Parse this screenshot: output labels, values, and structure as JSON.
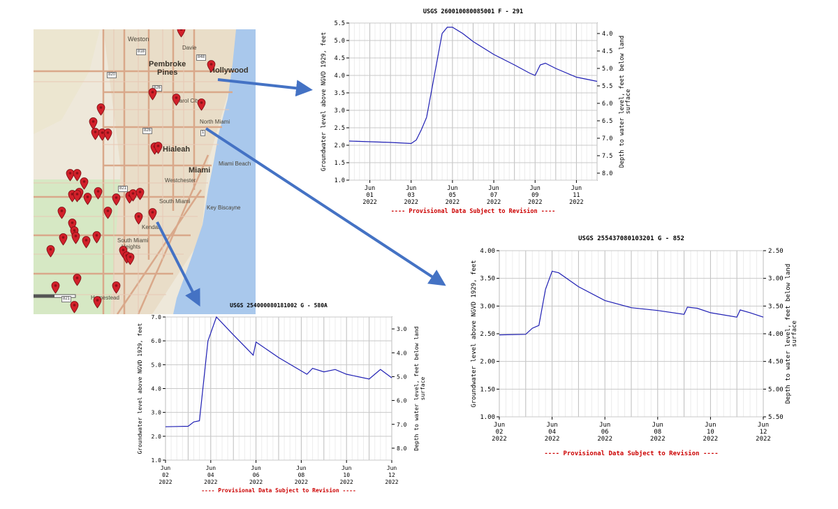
{
  "map": {
    "places": {
      "weston": "Weston",
      "davie": "Davie",
      "pembroke": "Pembroke",
      "pines": "Pines",
      "hollywood": "Hollywood",
      "carol_city": "Carol City",
      "north_miami": "North Miami",
      "hialeah": "Hialeah",
      "miami": "Miami",
      "miami_beach": "Miami Beach",
      "westchester": "Westchester",
      "south_miami": "South Miami",
      "key_biscayne": "Key Biscayne",
      "kendall": "Kendall",
      "south_miami_heights": "South Miami",
      "heights": "Heights",
      "homestead": "Homestead"
    },
    "highways": [
      "818",
      "848",
      "820",
      "826",
      "826",
      "821",
      "1",
      "821"
    ]
  },
  "charts": [
    {
      "id": "291",
      "title": "USGS 260010080085001 F  - 291",
      "ylabel": "Groundwater level above NGVD 1929, feet",
      "ylabel_right_1": "Depth to water level, feet below land",
      "ylabel_right_2": "surface",
      "yticks_left": [
        "5.5",
        "5.0",
        "4.5",
        "4.0",
        "3.5",
        "3.0",
        "2.5",
        "2.0",
        "1.5",
        "1.0"
      ],
      "yticks_right": [
        "4.0",
        "4.5",
        "5.0",
        "5.5",
        "6.0",
        "6.5",
        "7.0",
        "7.5",
        "8.0"
      ],
      "xticks": [
        {
          "m": "Jun",
          "d": "01",
          "y": "2022"
        },
        {
          "m": "Jun",
          "d": "03",
          "y": "2022"
        },
        {
          "m": "Jun",
          "d": "05",
          "y": "2022"
        },
        {
          "m": "Jun",
          "d": "07",
          "y": "2022"
        },
        {
          "m": "Jun",
          "d": "09",
          "y": "2022"
        },
        {
          "m": "Jun",
          "d": "11",
          "y": "2022"
        }
      ],
      "footer": "---- Provisional Data Subject to Revision ----"
    },
    {
      "id": "852",
      "title": "USGS 255437080103201 G  - 852",
      "ylabel": "Groundwater level above NGVD 1929, feet",
      "ylabel_right_1": "Depth to water level, feet below land",
      "ylabel_right_2": "surface",
      "yticks_left": [
        "4.00",
        "3.50",
        "3.00",
        "2.50",
        "2.00",
        "1.50",
        "1.00"
      ],
      "yticks_right": [
        "2.50",
        "3.00",
        "3.50",
        "4.00",
        "4.50",
        "5.00",
        "5.50"
      ],
      "xticks": [
        {
          "m": "Jun",
          "d": "02",
          "y": "2022"
        },
        {
          "m": "Jun",
          "d": "04",
          "y": "2022"
        },
        {
          "m": "Jun",
          "d": "06",
          "y": "2022"
        },
        {
          "m": "Jun",
          "d": "08",
          "y": "2022"
        },
        {
          "m": "Jun",
          "d": "10",
          "y": "2022"
        },
        {
          "m": "Jun",
          "d": "12",
          "y": "2022"
        }
      ],
      "footer": "---- Provisional Data Subject to Revision ----"
    },
    {
      "id": "580A",
      "title": "USGS 254000080181002 G  - 580A",
      "ylabel": "Groundwater level above NGVD 1929, feet",
      "ylabel_right_1": "Depth to water level, feet below land",
      "ylabel_right_2": "surface",
      "yticks_left": [
        "7.0",
        "6.0",
        "5.0",
        "4.0",
        "3.0",
        "2.0",
        "1.0"
      ],
      "yticks_right": [
        "3.0",
        "4.0",
        "5.0",
        "6.0",
        "7.0",
        "8.0"
      ],
      "xticks": [
        {
          "m": "Jun",
          "d": "02",
          "y": "2022"
        },
        {
          "m": "Jun",
          "d": "04",
          "y": "2022"
        },
        {
          "m": "Jun",
          "d": "06",
          "y": "2022"
        },
        {
          "m": "Jun",
          "d": "08",
          "y": "2022"
        },
        {
          "m": "Jun",
          "d": "10",
          "y": "2022"
        },
        {
          "m": "Jun",
          "d": "12",
          "y": "2022"
        }
      ],
      "footer": "---- Provisional Data Subject to Revision ----"
    }
  ],
  "chart_data": [
    {
      "type": "line",
      "title": "USGS 260010080085001 F  - 291",
      "ylabel": "Groundwater level above NGVD 1929, feet",
      "y2label": "Depth to water level, feet below land surface",
      "ylim": [
        1.0,
        5.5
      ],
      "y2lim": [
        3.7,
        8.2
      ],
      "xlim": [
        "2022-05-31",
        "2022-06-12"
      ],
      "grid": true,
      "line_color": "#1f1fb4",
      "series": [
        {
          "x": [
            "2022-05-31",
            "2022-06-01",
            "2022-06-02",
            "2022-06-03",
            "2022-06-03 06:00",
            "2022-06-03 12:00",
            "2022-06-03 18:00",
            "2022-06-04",
            "2022-06-04 12:00",
            "2022-06-04 18:00",
            "2022-06-05",
            "2022-06-05 12:00",
            "2022-06-06",
            "2022-06-07",
            "2022-06-08",
            "2022-06-08 18:00",
            "2022-06-09",
            "2022-06-09 06:00",
            "2022-06-09 12:00",
            "2022-06-10",
            "2022-06-11",
            "2022-06-12"
          ],
          "y": [
            2.12,
            2.1,
            2.08,
            2.05,
            2.15,
            2.45,
            2.8,
            3.6,
            5.2,
            5.38,
            5.38,
            5.2,
            4.97,
            4.6,
            4.3,
            4.06,
            4.0,
            4.3,
            4.35,
            4.2,
            3.95,
            3.83
          ]
        }
      ]
    },
    {
      "type": "line",
      "title": "USGS 255437080103201 G  - 852",
      "ylabel": "Groundwater level above NGVD 1929, feet",
      "y2label": "Depth to water level, feet below land surface",
      "ylim": [
        1.0,
        4.0
      ],
      "y2lim": [
        2.5,
        5.5
      ],
      "xlim": [
        "2022-06-02",
        "2022-06-12"
      ],
      "grid": true,
      "line_color": "#1f1fb4",
      "series": [
        {
          "x": [
            "2022-06-02",
            "2022-06-03",
            "2022-06-03 06:00",
            "2022-06-03 12:00",
            "2022-06-03 18:00",
            "2022-06-04",
            "2022-06-04 06:00",
            "2022-06-05",
            "2022-06-06",
            "2022-06-07",
            "2022-06-08",
            "2022-06-09",
            "2022-06-09 03:00",
            "2022-06-09 12:00",
            "2022-06-10",
            "2022-06-11",
            "2022-06-11 03:00",
            "2022-06-11 12:00",
            "2022-06-12"
          ],
          "y": [
            2.48,
            2.49,
            2.6,
            2.65,
            3.3,
            3.63,
            3.6,
            3.35,
            3.1,
            2.97,
            2.92,
            2.85,
            2.98,
            2.96,
            2.88,
            2.8,
            2.93,
            2.88,
            2.8
          ]
        }
      ]
    },
    {
      "type": "line",
      "title": "USGS 254000080181002 G  - 580A",
      "ylabel": "Groundwater level above NGVD 1929, feet",
      "y2label": "Depth to water level, feet below land surface",
      "ylim": [
        1.0,
        7.0
      ],
      "y2lim": [
        2.5,
        8.5
      ],
      "xlim": [
        "2022-06-02",
        "2022-06-12"
      ],
      "grid": true,
      "line_color": "#1f1fb4",
      "series": [
        {
          "x": [
            "2022-06-02",
            "2022-06-03",
            "2022-06-03 06:00",
            "2022-06-03 12:00",
            "2022-06-03 21:00",
            "2022-06-04 06:00",
            "2022-06-05",
            "2022-06-05 21:00",
            "2022-06-06",
            "2022-06-07",
            "2022-06-08 06:00",
            "2022-06-08 12:00",
            "2022-06-09",
            "2022-06-09 12:00",
            "2022-06-10",
            "2022-06-11",
            "2022-06-11 12:00",
            "2022-06-12"
          ],
          "y": [
            2.4,
            2.42,
            2.6,
            2.65,
            6.0,
            7.0,
            6.25,
            5.4,
            5.95,
            5.3,
            4.6,
            4.85,
            4.7,
            4.8,
            4.6,
            4.4,
            4.8,
            4.45
          ]
        }
      ]
    }
  ]
}
